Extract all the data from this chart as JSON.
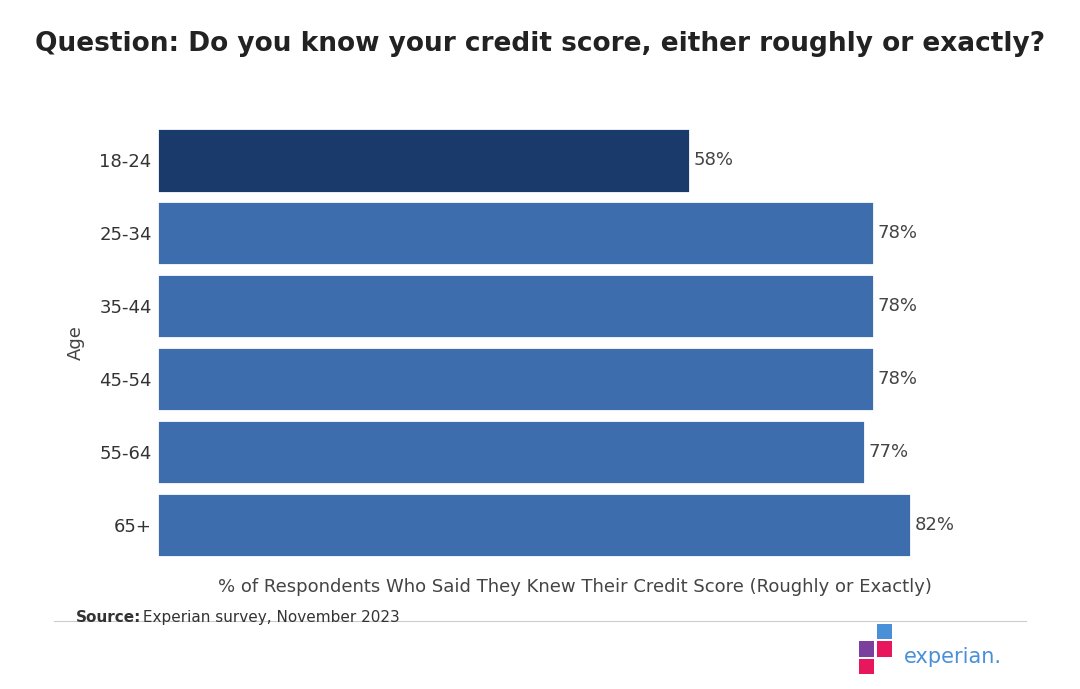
{
  "title": "Question: Do you know your credit score, either roughly or exactly?",
  "categories": [
    "18-24",
    "25-34",
    "35-44",
    "45-54",
    "55-64",
    "65+"
  ],
  "values": [
    58,
    78,
    78,
    78,
    77,
    82
  ],
  "bar_colors": [
    "#1a3a6b",
    "#3d6dad",
    "#3d6dad",
    "#3d6dad",
    "#3d6dad",
    "#3d6dad"
  ],
  "xlabel": "% of Respondents Who Said They Knew Their Credit Score (Roughly or Exactly)",
  "ylabel": "Age",
  "xlim": [
    0,
    91
  ],
  "source_bold": "Source:",
  "source_text": " Experian survey, November 2023",
  "title_fontsize": 19,
  "label_fontsize": 13,
  "tick_fontsize": 13,
  "source_fontsize": 11,
  "value_fontsize": 13,
  "background_color": "#ffffff",
  "bar_edge_color": "#ffffff",
  "bar_linewidth": 2.0,
  "bar_height": 0.88,
  "logo_squares": [
    {
      "color": "#7b3f9e",
      "col": 0,
      "row": 1
    },
    {
      "color": "#4a90d9",
      "col": 1,
      "row": 0
    },
    {
      "color": "#e8175d",
      "col": 0,
      "row": 2
    },
    {
      "color": "#e8175d",
      "col": 1,
      "row": 1
    }
  ],
  "logo_text": "experian.",
  "logo_text_color": "#4a90d9"
}
